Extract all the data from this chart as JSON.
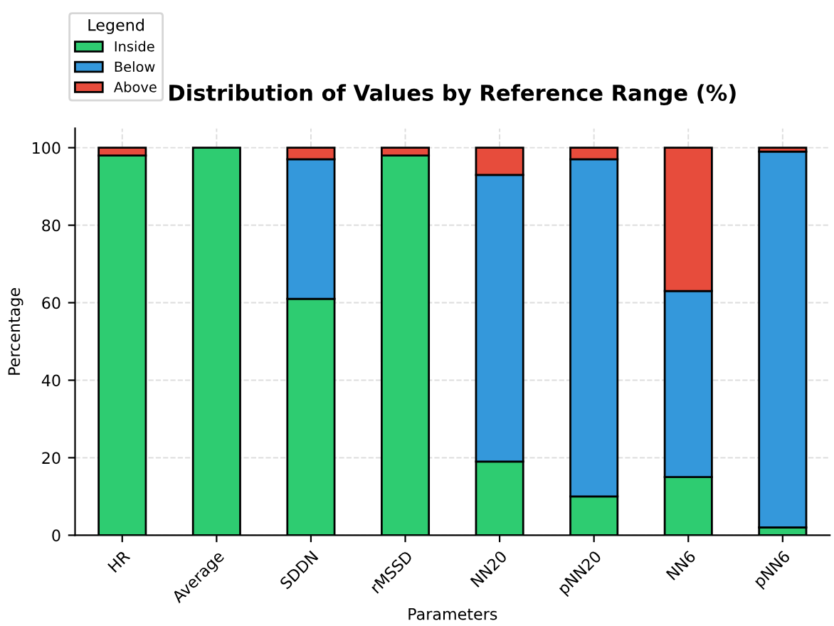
{
  "chart_data": {
    "type": "bar",
    "title": "Distribution of Values by Reference Range (%)",
    "xlabel": "Parameters",
    "ylabel": "Percentage",
    "categories": [
      "HR",
      "Average",
      "SDDN",
      "rMSSD",
      "NN20",
      "pNN20",
      "NN6",
      "pNN6"
    ],
    "series": [
      {
        "name": "Inside",
        "color": "#2ecc71",
        "values": [
          98,
          100,
          61,
          98,
          19,
          10,
          15,
          2
        ]
      },
      {
        "name": "Below",
        "color": "#3498db",
        "values": [
          0,
          0,
          36,
          0,
          74,
          87,
          48,
          97
        ]
      },
      {
        "name": "Above",
        "color": "#e74c3c",
        "values": [
          2,
          0,
          3,
          2,
          7,
          3,
          37,
          1
        ]
      }
    ],
    "stacked": true,
    "ylim": [
      0,
      105
    ],
    "yticks": [
      0,
      20,
      40,
      60,
      80,
      100
    ],
    "grid": true,
    "legend": "top left",
    "legend_title": "Legend"
  }
}
